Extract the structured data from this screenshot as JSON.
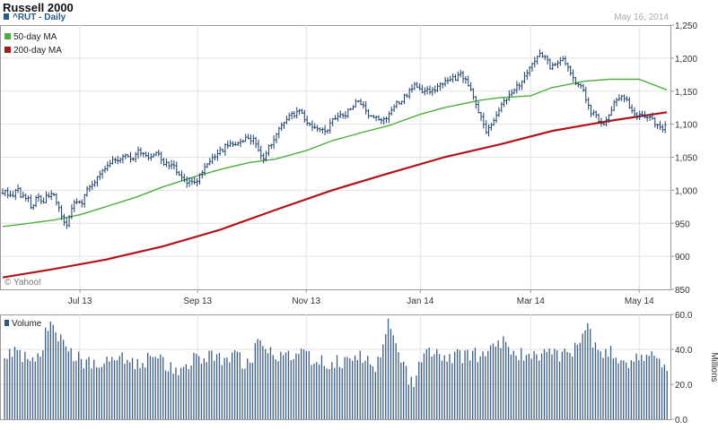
{
  "header": {
    "title": "Russell 2000",
    "ticker_label": "^RUT - Daily",
    "date": "May 16, 2014",
    "watermark": "© Yahoo!"
  },
  "colors": {
    "price": "#1a3f6b",
    "ma50": "#4caf3c",
    "ma200": "#b0151a",
    "volume": "#3d5f85",
    "grid": "#e2e2e2",
    "frame": "#9a9a9a",
    "legend_price": "#2a5a8c"
  },
  "chart_data": [
    {
      "type": "line",
      "name": "price-panel",
      "x_range": [
        "2013-05-20",
        "2014-05-16"
      ],
      "ylim": [
        850,
        1250
      ],
      "yticks": [
        850,
        900,
        950,
        1000,
        1050,
        1100,
        1150,
        1200,
        1250
      ],
      "ytick_labels": [
        "850",
        "900",
        "950",
        "1,000",
        "1,050",
        "1,100",
        "1,150",
        "1,200",
        "1,250"
      ],
      "xticks": [
        {
          "date": "2013-07-01",
          "label": "Jul 13"
        },
        {
          "date": "2013-09-03",
          "label": "Sep 13"
        },
        {
          "date": "2013-11-01",
          "label": "Nov 13"
        },
        {
          "date": "2014-01-02",
          "label": "Jan 14"
        },
        {
          "date": "2014-03-03",
          "label": "Mar 14"
        },
        {
          "date": "2014-05-01",
          "label": "May 14"
        }
      ],
      "grid": true,
      "legend_position": "top-left",
      "series": [
        {
          "name": "^RUT - Daily",
          "style": "ohlc-bars",
          "points": [
            [
              "2013-05-20",
              996
            ],
            [
              "2013-05-22",
              1000
            ],
            [
              "2013-05-24",
              988
            ],
            [
              "2013-05-28",
              1005
            ],
            [
              "2013-05-30",
              990
            ],
            [
              "2013-06-03",
              985
            ],
            [
              "2013-06-05",
              970
            ],
            [
              "2013-06-07",
              990
            ],
            [
              "2013-06-11",
              982
            ],
            [
              "2013-06-13",
              995
            ],
            [
              "2013-06-17",
              990
            ],
            [
              "2013-06-19",
              980
            ],
            [
              "2013-06-21",
              958
            ],
            [
              "2013-06-24",
              948
            ],
            [
              "2013-06-26",
              970
            ],
            [
              "2013-06-28",
              978
            ],
            [
              "2013-07-02",
              980
            ],
            [
              "2013-07-05",
              1000
            ],
            [
              "2013-07-09",
              1015
            ],
            [
              "2013-07-12",
              1025
            ],
            [
              "2013-07-16",
              1035
            ],
            [
              "2013-07-19",
              1045
            ],
            [
              "2013-07-23",
              1050
            ],
            [
              "2013-07-26",
              1050
            ],
            [
              "2013-07-30",
              1048
            ],
            [
              "2013-08-02",
              1060
            ],
            [
              "2013-08-06",
              1050
            ],
            [
              "2013-08-09",
              1055
            ],
            [
              "2013-08-13",
              1055
            ],
            [
              "2013-08-16",
              1040
            ],
            [
              "2013-08-20",
              1035
            ],
            [
              "2013-08-23",
              1030
            ],
            [
              "2013-08-27",
              1015
            ],
            [
              "2013-08-30",
              1012
            ],
            [
              "2013-09-03",
              1018
            ],
            [
              "2013-09-06",
              1030
            ],
            [
              "2013-09-10",
              1045
            ],
            [
              "2013-09-13",
              1055
            ],
            [
              "2013-09-17",
              1062
            ],
            [
              "2013-09-20",
              1072
            ],
            [
              "2013-09-24",
              1070
            ],
            [
              "2013-09-27",
              1075
            ],
            [
              "2013-10-01",
              1080
            ],
            [
              "2013-10-04",
              1075
            ],
            [
              "2013-10-08",
              1045
            ],
            [
              "2013-10-11",
              1065
            ],
            [
              "2013-10-15",
              1080
            ],
            [
              "2013-10-18",
              1100
            ],
            [
              "2013-10-22",
              1110
            ],
            [
              "2013-10-25",
              1115
            ],
            [
              "2013-10-29",
              1118
            ],
            [
              "2013-11-01",
              1102
            ],
            [
              "2013-11-05",
              1098
            ],
            [
              "2013-11-08",
              1092
            ],
            [
              "2013-11-12",
              1090
            ],
            [
              "2013-11-15",
              1105
            ],
            [
              "2013-11-19",
              1110
            ],
            [
              "2013-11-22",
              1115
            ],
            [
              "2013-11-26",
              1125
            ],
            [
              "2013-11-29",
              1140
            ],
            [
              "2013-12-03",
              1120
            ],
            [
              "2013-12-06",
              1112
            ],
            [
              "2013-12-10",
              1110
            ],
            [
              "2013-12-13",
              1108
            ],
            [
              "2013-12-17",
              1118
            ],
            [
              "2013-12-20",
              1132
            ],
            [
              "2013-12-24",
              1140
            ],
            [
              "2013-12-27",
              1150
            ],
            [
              "2013-12-31",
              1160
            ],
            [
              "2014-01-03",
              1150
            ],
            [
              "2014-01-07",
              1152
            ],
            [
              "2014-01-10",
              1155
            ],
            [
              "2014-01-14",
              1158
            ],
            [
              "2014-01-17",
              1170
            ],
            [
              "2014-01-21",
              1168
            ],
            [
              "2014-01-24",
              1175
            ],
            [
              "2014-01-28",
              1160
            ],
            [
              "2014-01-31",
              1140
            ],
            [
              "2014-02-04",
              1110
            ],
            [
              "2014-02-07",
              1090
            ],
            [
              "2014-02-11",
              1108
            ],
            [
              "2014-02-14",
              1125
            ],
            [
              "2014-02-18",
              1140
            ],
            [
              "2014-02-21",
              1150
            ],
            [
              "2014-02-25",
              1160
            ],
            [
              "2014-02-28",
              1175
            ],
            [
              "2014-03-04",
              1195
            ],
            [
              "2014-03-07",
              1205
            ],
            [
              "2014-03-11",
              1200
            ],
            [
              "2014-03-14",
              1185
            ],
            [
              "2014-03-18",
              1195
            ],
            [
              "2014-03-21",
              1200
            ],
            [
              "2014-03-25",
              1175
            ],
            [
              "2014-03-28",
              1160
            ],
            [
              "2014-04-01",
              1150
            ],
            [
              "2014-04-04",
              1120
            ],
            [
              "2014-04-08",
              1110
            ],
            [
              "2014-04-11",
              1100
            ],
            [
              "2014-04-15",
              1120
            ],
            [
              "2014-04-18",
              1135
            ],
            [
              "2014-04-22",
              1145
            ],
            [
              "2014-04-25",
              1130
            ],
            [
              "2014-04-29",
              1115
            ],
            [
              "2014-05-02",
              1115
            ],
            [
              "2014-05-06",
              1112
            ],
            [
              "2014-05-09",
              1105
            ],
            [
              "2014-05-13",
              1090
            ],
            [
              "2014-05-16",
              1098
            ]
          ]
        },
        {
          "name": "50-day MA",
          "points": [
            [
              "2013-05-20",
              945
            ],
            [
              "2013-06-03",
              950
            ],
            [
              "2013-06-17",
              955
            ],
            [
              "2013-07-01",
              963
            ],
            [
              "2013-07-15",
              975
            ],
            [
              "2013-08-01",
              990
            ],
            [
              "2013-08-15",
              1005
            ],
            [
              "2013-09-03",
              1022
            ],
            [
              "2013-09-16",
              1032
            ],
            [
              "2013-10-01",
              1042
            ],
            [
              "2013-10-15",
              1047
            ],
            [
              "2013-11-01",
              1060
            ],
            [
              "2013-11-15",
              1075
            ],
            [
              "2013-12-02",
              1088
            ],
            [
              "2013-12-16",
              1098
            ],
            [
              "2014-01-02",
              1115
            ],
            [
              "2014-01-15",
              1125
            ],
            [
              "2014-02-03",
              1136
            ],
            [
              "2014-02-14",
              1140
            ],
            [
              "2014-03-03",
              1143
            ],
            [
              "2014-03-14",
              1155
            ],
            [
              "2014-04-01",
              1165
            ],
            [
              "2014-04-15",
              1168
            ],
            [
              "2014-05-01",
              1168
            ],
            [
              "2014-05-16",
              1152
            ]
          ]
        },
        {
          "name": "200-day MA",
          "points": [
            [
              "2013-05-20",
              868
            ],
            [
              "2013-06-15",
              880
            ],
            [
              "2013-07-15",
              895
            ],
            [
              "2013-08-15",
              915
            ],
            [
              "2013-09-15",
              940
            ],
            [
              "2013-10-15",
              970
            ],
            [
              "2013-11-15",
              1000
            ],
            [
              "2013-12-15",
              1025
            ],
            [
              "2014-01-15",
              1050
            ],
            [
              "2014-02-15",
              1070
            ],
            [
              "2014-03-15",
              1090
            ],
            [
              "2014-04-15",
              1105
            ],
            [
              "2014-05-16",
              1118
            ]
          ]
        }
      ]
    },
    {
      "type": "bar",
      "name": "volume-panel",
      "series_name": "Volume",
      "ylabel": "Millions",
      "ylim": [
        0,
        60
      ],
      "yticks": [
        0,
        20,
        40,
        60
      ],
      "ytick_labels": [
        "0.0",
        "20.0",
        "40.0",
        "60.0"
      ],
      "weekly_volume": [
        35,
        38,
        33,
        37,
        60,
        42,
        36,
        33,
        34,
        32,
        35,
        31,
        33,
        36,
        30,
        29,
        34,
        36,
        35,
        34,
        36,
        30,
        48,
        36,
        38,
        37,
        35,
        34,
        32,
        33,
        36,
        35,
        30,
        55,
        34,
        20,
        38,
        40,
        35,
        36,
        38,
        36,
        40,
        45,
        38,
        37,
        35,
        39,
        36,
        40,
        52,
        40,
        38,
        35,
        32,
        36,
        34,
        30
      ]
    }
  ]
}
